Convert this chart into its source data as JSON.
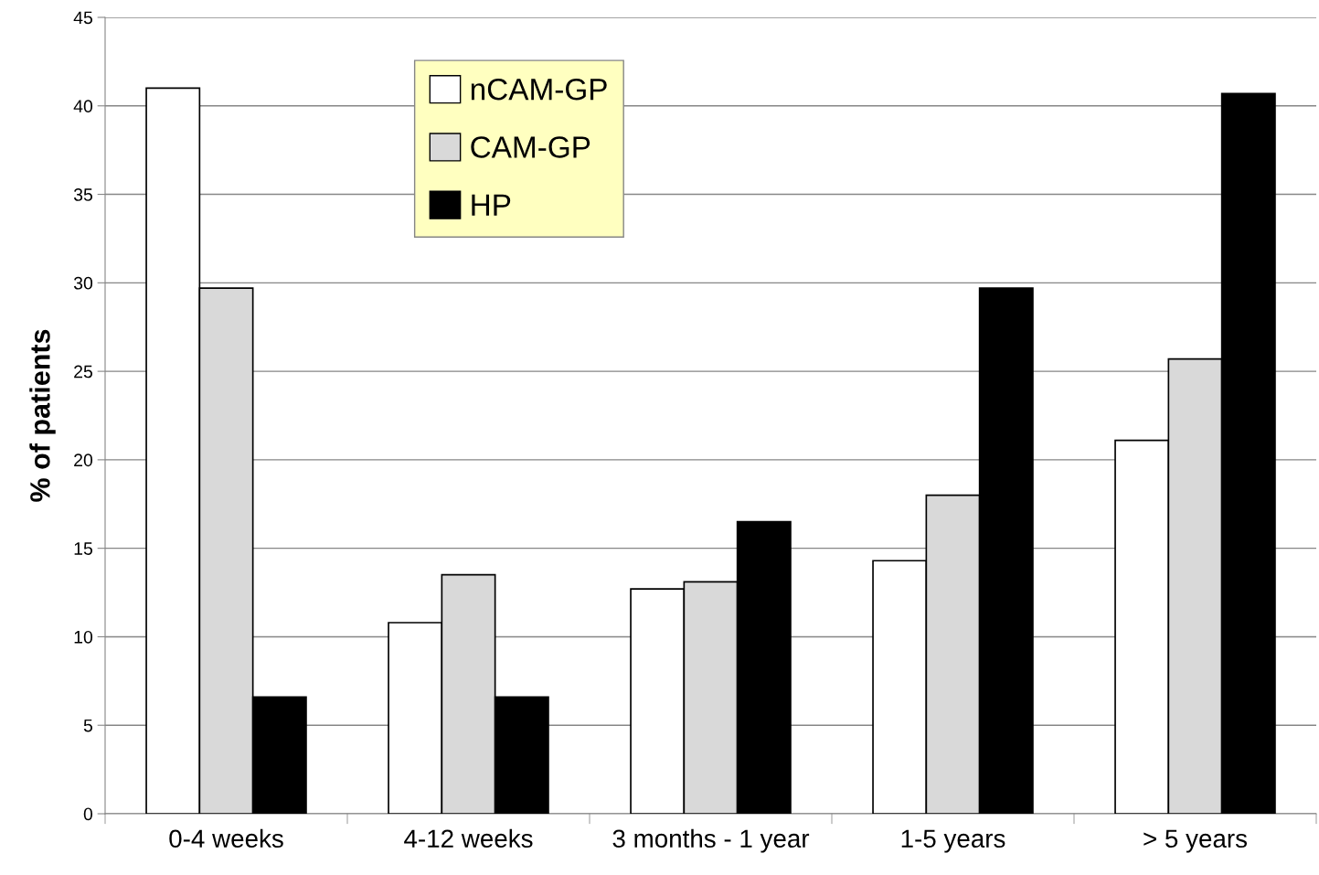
{
  "chart_data": {
    "type": "bar",
    "ylabel": "% of patients",
    "categories": [
      "0-4 weeks",
      "4-12 weeks",
      "3 months - 1 year",
      "1-5 years",
      "> 5 years"
    ],
    "series": [
      {
        "name": "nCAM-GP",
        "color": "#ffffff",
        "values": [
          41.0,
          10.8,
          12.7,
          14.3,
          21.1
        ]
      },
      {
        "name": "CAM-GP",
        "color": "#d9d9d9",
        "values": [
          29.7,
          13.5,
          13.1,
          18.0,
          25.7
        ]
      },
      {
        "name": "HP",
        "color": "#000000",
        "values": [
          6.6,
          6.6,
          16.5,
          29.7,
          40.7
        ]
      }
    ],
    "ylim": [
      0,
      45
    ],
    "yticks": [
      0,
      5,
      10,
      15,
      20,
      25,
      30,
      35,
      40,
      45
    ],
    "grid": "y",
    "legend": "top left"
  }
}
